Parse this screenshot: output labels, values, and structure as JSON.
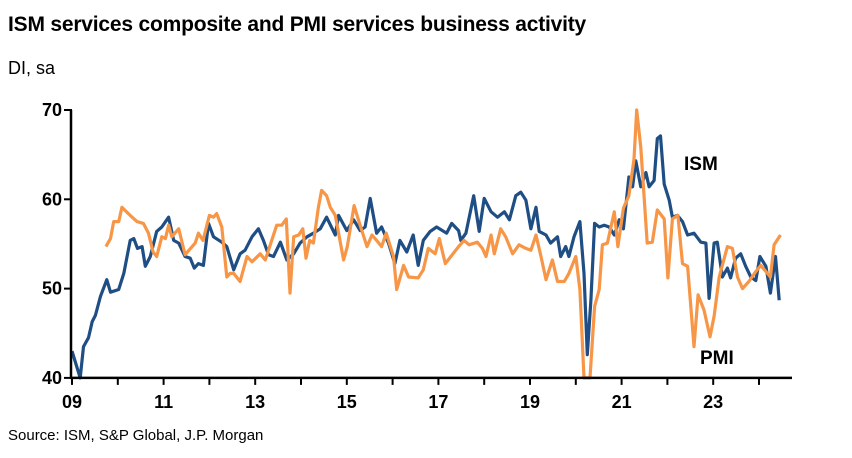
{
  "title": "ISM services composite and PMI services business activity",
  "subtitle": "DI, sa",
  "source": "Source: ISM, S&P Global, J.P. Morgan",
  "chart_data": {
    "type": "line",
    "title": "ISM services composite and PMI services business activity",
    "ylabel": "DI, sa",
    "xlabel": "",
    "ylim": [
      40,
      70
    ],
    "xlim": [
      2009,
      2025
    ],
    "yticks": [
      "40",
      "50",
      "60",
      "70"
    ],
    "xtick_labels": [
      "09",
      "11",
      "13",
      "15",
      "17",
      "19",
      "21",
      "23"
    ],
    "grid": false,
    "legend": "inline labels",
    "series": [
      {
        "name": "ISM",
        "color": "#1F4E85",
        "points": [
          [
            2009.0,
            43.0
          ],
          [
            2009.18,
            40.0
          ],
          [
            2009.25,
            43.5
          ],
          [
            2009.36,
            44.5
          ],
          [
            2009.44,
            46.3
          ],
          [
            2009.51,
            47.0
          ],
          [
            2009.62,
            49.1
          ],
          [
            2009.76,
            51.0
          ],
          [
            2009.84,
            49.6
          ],
          [
            2010.02,
            49.9
          ],
          [
            2010.13,
            51.7
          ],
          [
            2010.27,
            55.4
          ],
          [
            2010.35,
            55.6
          ],
          [
            2010.43,
            54.5
          ],
          [
            2010.53,
            54.7
          ],
          [
            2010.6,
            52.5
          ],
          [
            2010.71,
            53.6
          ],
          [
            2010.85,
            56.4
          ],
          [
            2010.96,
            56.9
          ],
          [
            2011.11,
            58.0
          ],
          [
            2011.22,
            55.4
          ],
          [
            2011.33,
            55.1
          ],
          [
            2011.47,
            53.6
          ],
          [
            2011.58,
            53.4
          ],
          [
            2011.67,
            52.3
          ],
          [
            2011.76,
            52.8
          ],
          [
            2011.87,
            52.6
          ],
          [
            2011.98,
            57.3
          ],
          [
            2012.09,
            55.8
          ],
          [
            2012.27,
            55.2
          ],
          [
            2012.38,
            54.7
          ],
          [
            2012.53,
            52.1
          ],
          [
            2012.67,
            53.9
          ],
          [
            2012.78,
            54.3
          ],
          [
            2012.93,
            55.8
          ],
          [
            2013.07,
            56.7
          ],
          [
            2013.18,
            55.4
          ],
          [
            2013.29,
            53.8
          ],
          [
            2013.4,
            53.6
          ],
          [
            2013.55,
            55.2
          ],
          [
            2013.69,
            53.2
          ],
          [
            2013.84,
            53.9
          ],
          [
            2013.98,
            55.1
          ],
          [
            2014.13,
            55.8
          ],
          [
            2014.27,
            56.2
          ],
          [
            2014.42,
            56.7
          ],
          [
            2014.56,
            58.0
          ],
          [
            2014.75,
            56.0
          ],
          [
            2014.82,
            58.2
          ],
          [
            2015.0,
            56.5
          ],
          [
            2015.15,
            57.7
          ],
          [
            2015.29,
            56.5
          ],
          [
            2015.4,
            56.9
          ],
          [
            2015.51,
            60.1
          ],
          [
            2015.65,
            56.2
          ],
          [
            2015.76,
            56.9
          ],
          [
            2015.91,
            55.1
          ],
          [
            2016.05,
            52.8
          ],
          [
            2016.16,
            55.4
          ],
          [
            2016.31,
            54.1
          ],
          [
            2016.45,
            56.0
          ],
          [
            2016.56,
            52.6
          ],
          [
            2016.67,
            55.4
          ],
          [
            2016.82,
            56.4
          ],
          [
            2016.96,
            56.9
          ],
          [
            2017.18,
            56.2
          ],
          [
            2017.29,
            57.3
          ],
          [
            2017.44,
            56.5
          ],
          [
            2017.49,
            55.4
          ],
          [
            2017.6,
            56.2
          ],
          [
            2017.77,
            60.4
          ],
          [
            2017.89,
            56.4
          ],
          [
            2018.0,
            60.1
          ],
          [
            2018.15,
            58.6
          ],
          [
            2018.29,
            58.0
          ],
          [
            2018.44,
            58.6
          ],
          [
            2018.55,
            57.7
          ],
          [
            2018.69,
            60.4
          ],
          [
            2018.8,
            60.8
          ],
          [
            2018.91,
            59.9
          ],
          [
            2019.02,
            56.7
          ],
          [
            2019.13,
            59.1
          ],
          [
            2019.2,
            56.4
          ],
          [
            2019.35,
            56.0
          ],
          [
            2019.45,
            55.1
          ],
          [
            2019.6,
            55.8
          ],
          [
            2019.67,
            53.6
          ],
          [
            2019.78,
            54.7
          ],
          [
            2019.85,
            53.6
          ],
          [
            2019.96,
            55.8
          ],
          [
            2020.09,
            57.5
          ],
          [
            2020.18,
            51.7
          ],
          [
            2020.25,
            42.6
          ],
          [
            2020.33,
            48.7
          ],
          [
            2020.41,
            57.3
          ],
          [
            2020.51,
            56.9
          ],
          [
            2020.62,
            57.1
          ],
          [
            2020.73,
            56.9
          ],
          [
            2020.84,
            56.0
          ],
          [
            2020.95,
            57.7
          ],
          [
            2021.04,
            56.7
          ],
          [
            2021.16,
            62.5
          ],
          [
            2021.24,
            61.4
          ],
          [
            2021.31,
            64.3
          ],
          [
            2021.42,
            61.4
          ],
          [
            2021.53,
            63.0
          ],
          [
            2021.6,
            61.4
          ],
          [
            2021.71,
            62.1
          ],
          [
            2021.78,
            66.8
          ],
          [
            2021.85,
            67.1
          ],
          [
            2021.93,
            61.7
          ],
          [
            2022.04,
            59.9
          ],
          [
            2022.11,
            58.0
          ],
          [
            2022.22,
            58.2
          ],
          [
            2022.33,
            57.5
          ],
          [
            2022.44,
            56.0
          ],
          [
            2022.58,
            56.2
          ],
          [
            2022.73,
            55.2
          ],
          [
            2022.84,
            55.1
          ],
          [
            2022.91,
            48.9
          ],
          [
            2023.02,
            55.1
          ],
          [
            2023.09,
            55.2
          ],
          [
            2023.2,
            51.3
          ],
          [
            2023.31,
            52.3
          ],
          [
            2023.38,
            51.2
          ],
          [
            2023.49,
            53.4
          ],
          [
            2023.6,
            53.9
          ],
          [
            2023.71,
            52.5
          ],
          [
            2023.82,
            51.3
          ],
          [
            2023.93,
            50.9
          ],
          [
            2024.02,
            53.6
          ],
          [
            2024.15,
            52.5
          ],
          [
            2024.25,
            49.5
          ],
          [
            2024.36,
            53.6
          ],
          [
            2024.44,
            48.7
          ]
        ]
      },
      {
        "name": "PMI",
        "color": "#F79646",
        "points": [
          [
            2009.74,
            54.7
          ],
          [
            2009.84,
            55.6
          ],
          [
            2009.91,
            57.5
          ],
          [
            2010.02,
            57.5
          ],
          [
            2010.09,
            59.1
          ],
          [
            2010.27,
            58.2
          ],
          [
            2010.42,
            57.5
          ],
          [
            2010.56,
            57.3
          ],
          [
            2010.67,
            56.2
          ],
          [
            2010.77,
            54.1
          ],
          [
            2010.85,
            53.6
          ],
          [
            2010.96,
            55.8
          ],
          [
            2011.04,
            55.6
          ],
          [
            2011.11,
            57.1
          ],
          [
            2011.18,
            55.8
          ],
          [
            2011.33,
            56.7
          ],
          [
            2011.47,
            53.8
          ],
          [
            2011.69,
            55.1
          ],
          [
            2011.76,
            56.2
          ],
          [
            2011.86,
            55.4
          ],
          [
            2012.0,
            58.2
          ],
          [
            2012.09,
            58.0
          ],
          [
            2012.16,
            58.4
          ],
          [
            2012.27,
            56.9
          ],
          [
            2012.38,
            51.3
          ],
          [
            2012.45,
            51.7
          ],
          [
            2012.53,
            51.7
          ],
          [
            2012.67,
            50.8
          ],
          [
            2012.82,
            53.6
          ],
          [
            2012.93,
            53.0
          ],
          [
            2013.11,
            53.9
          ],
          [
            2013.22,
            53.2
          ],
          [
            2013.47,
            57.1
          ],
          [
            2013.58,
            57.1
          ],
          [
            2013.68,
            57.8
          ],
          [
            2013.76,
            49.5
          ],
          [
            2013.84,
            55.8
          ],
          [
            2013.95,
            56.0
          ],
          [
            2014.04,
            56.7
          ],
          [
            2014.11,
            53.4
          ],
          [
            2014.19,
            55.4
          ],
          [
            2014.27,
            55.1
          ],
          [
            2014.38,
            59.1
          ],
          [
            2014.45,
            61.0
          ],
          [
            2014.56,
            60.4
          ],
          [
            2014.64,
            59.1
          ],
          [
            2014.75,
            58.2
          ],
          [
            2014.93,
            53.2
          ],
          [
            2015.01,
            54.7
          ],
          [
            2015.16,
            59.3
          ],
          [
            2015.29,
            57.1
          ],
          [
            2015.44,
            54.7
          ],
          [
            2015.55,
            56.0
          ],
          [
            2015.65,
            55.4
          ],
          [
            2015.76,
            54.7
          ],
          [
            2015.86,
            56.2
          ],
          [
            2016.02,
            53.6
          ],
          [
            2016.09,
            49.9
          ],
          [
            2016.24,
            52.6
          ],
          [
            2016.35,
            51.3
          ],
          [
            2016.56,
            51.2
          ],
          [
            2016.67,
            52.1
          ],
          [
            2016.78,
            54.5
          ],
          [
            2016.93,
            53.9
          ],
          [
            2017.02,
            55.6
          ],
          [
            2017.15,
            52.8
          ],
          [
            2017.44,
            54.7
          ],
          [
            2017.56,
            55.4
          ],
          [
            2017.67,
            54.9
          ],
          [
            2017.85,
            55.2
          ],
          [
            2017.96,
            54.5
          ],
          [
            2018.04,
            53.6
          ],
          [
            2018.15,
            56.0
          ],
          [
            2018.22,
            53.9
          ],
          [
            2018.36,
            56.7
          ],
          [
            2018.47,
            55.8
          ],
          [
            2018.62,
            53.9
          ],
          [
            2018.76,
            54.9
          ],
          [
            2018.91,
            54.5
          ],
          [
            2019.02,
            54.3
          ],
          [
            2019.13,
            56.0
          ],
          [
            2019.24,
            53.6
          ],
          [
            2019.35,
            51.0
          ],
          [
            2019.49,
            53.2
          ],
          [
            2019.6,
            50.8
          ],
          [
            2019.75,
            50.8
          ],
          [
            2019.85,
            51.7
          ],
          [
            2020.0,
            53.6
          ],
          [
            2020.09,
            49.9
          ],
          [
            2020.18,
            40.0
          ],
          [
            2020.31,
            40.0
          ],
          [
            2020.41,
            48.0
          ],
          [
            2020.51,
            49.9
          ],
          [
            2020.58,
            54.9
          ],
          [
            2020.69,
            55.1
          ],
          [
            2020.84,
            58.6
          ],
          [
            2020.92,
            54.7
          ],
          [
            2021.04,
            59.0
          ],
          [
            2021.16,
            60.4
          ],
          [
            2021.27,
            64.5
          ],
          [
            2021.33,
            70.0
          ],
          [
            2021.42,
            65.8
          ],
          [
            2021.56,
            55.1
          ],
          [
            2021.67,
            55.2
          ],
          [
            2021.78,
            58.8
          ],
          [
            2021.93,
            57.8
          ],
          [
            2022.01,
            51.2
          ],
          [
            2022.11,
            57.8
          ],
          [
            2022.23,
            58.2
          ],
          [
            2022.33,
            52.8
          ],
          [
            2022.44,
            52.5
          ],
          [
            2022.58,
            43.5
          ],
          [
            2022.67,
            49.3
          ],
          [
            2022.8,
            47.6
          ],
          [
            2022.93,
            44.6
          ],
          [
            2023.02,
            46.9
          ],
          [
            2023.13,
            51.3
          ],
          [
            2023.31,
            54.7
          ],
          [
            2023.42,
            54.5
          ],
          [
            2023.53,
            51.3
          ],
          [
            2023.64,
            50.0
          ],
          [
            2023.78,
            50.8
          ],
          [
            2023.93,
            51.9
          ],
          [
            2024.04,
            52.6
          ],
          [
            2024.25,
            51.3
          ],
          [
            2024.33,
            54.9
          ],
          [
            2024.47,
            56.0
          ]
        ]
      }
    ]
  }
}
